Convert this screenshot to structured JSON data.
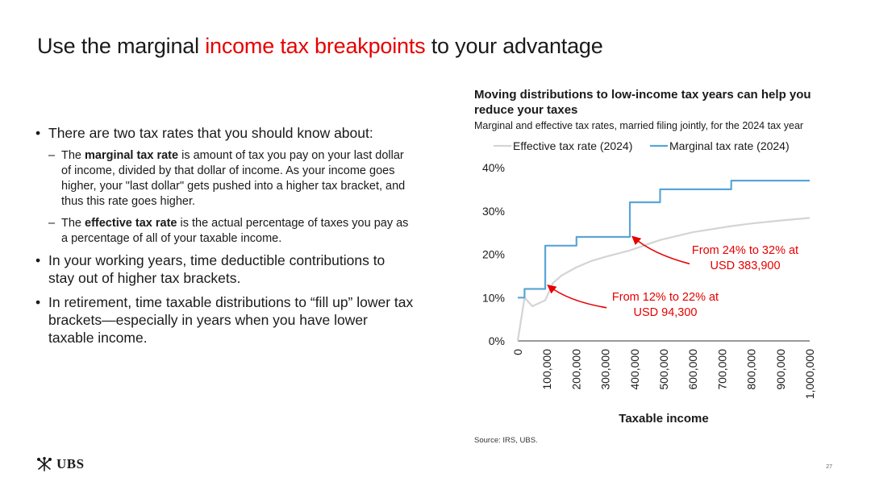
{
  "slide": {
    "title_prefix": "Use the marginal ",
    "title_highlight": "income tax breakpoints",
    "title_suffix": " to your advantage",
    "page_number": "27",
    "source": "Source: IRS, UBS.",
    "logo_text": "UBS"
  },
  "bullets": {
    "b1": "There are two tax rates that you should know about:",
    "s1_pre": "The ",
    "s1_bold": "marginal tax rate",
    "s1_rest": " is amount of tax you pay on your last dollar of income, divided by that dollar of income. As your income goes higher, your \"last dollar\" gets pushed into a higher tax bracket, and thus this rate goes higher.",
    "s2_pre": "The ",
    "s2_bold": "effective tax rate",
    "s2_rest": " is the actual percentage of taxes you pay as a percentage of all of your taxable income.",
    "b2": "In your working years, time deductible contributions to stay out of higher tax brackets.",
    "b3": "In retirement, time taxable distributions to “fill up” lower tax brackets—especially in years when you have lower taxable income."
  },
  "chart_data": {
    "type": "line",
    "title": "Moving distributions to low-income tax years can help you reduce your taxes",
    "subtitle": "Marginal and effective tax rates, married filing jointly, for the 2024 tax year",
    "xlabel": "Taxable income",
    "ylabel": "",
    "xlim": [
      0,
      1000000
    ],
    "ylim": [
      0,
      40
    ],
    "x_ticks": [
      "0",
      "100,000",
      "200,000",
      "300,000",
      "400,000",
      "500,000",
      "600,000",
      "700,000",
      "800,000",
      "900,000",
      "1,000,000"
    ],
    "y_ticks": [
      "0%",
      "10%",
      "20%",
      "30%",
      "40%"
    ],
    "legend_position": "top",
    "grid": false,
    "series": [
      {
        "name": "Effective tax rate (2024)",
        "color": "#d4d4d4",
        "x": [
          0,
          23200,
          50000,
          94300,
          120000,
          150000,
          201050,
          250000,
          300000,
          383900,
          487450,
          600000,
          731200,
          800000,
          900000,
          1000000
        ],
        "y": [
          0,
          10,
          8.0,
          9.4,
          13.3,
          15.1,
          17.0,
          18.4,
          19.4,
          20.9,
          23.3,
          25.1,
          26.5,
          27.1,
          27.8,
          28.4
        ]
      },
      {
        "name": "Marginal tax rate (2024)",
        "color": "#5aa5d6",
        "x": [
          0,
          23200,
          23200,
          94300,
          94300,
          201050,
          201050,
          383900,
          383900,
          487450,
          487450,
          731200,
          731200,
          1000000
        ],
        "y": [
          10,
          10,
          12,
          12,
          22,
          22,
          24,
          24,
          32,
          32,
          35,
          35,
          37,
          37
        ]
      }
    ],
    "annotations": [
      {
        "line1": "From 12% to 22% at",
        "line2": "USD 94,300",
        "x": 94300,
        "y": 12.5,
        "color": "#e60000"
      },
      {
        "line1": "From 24% to 32% at",
        "line2": "USD 383,900",
        "x": 383900,
        "y": 24.5,
        "color": "#e60000"
      }
    ]
  }
}
